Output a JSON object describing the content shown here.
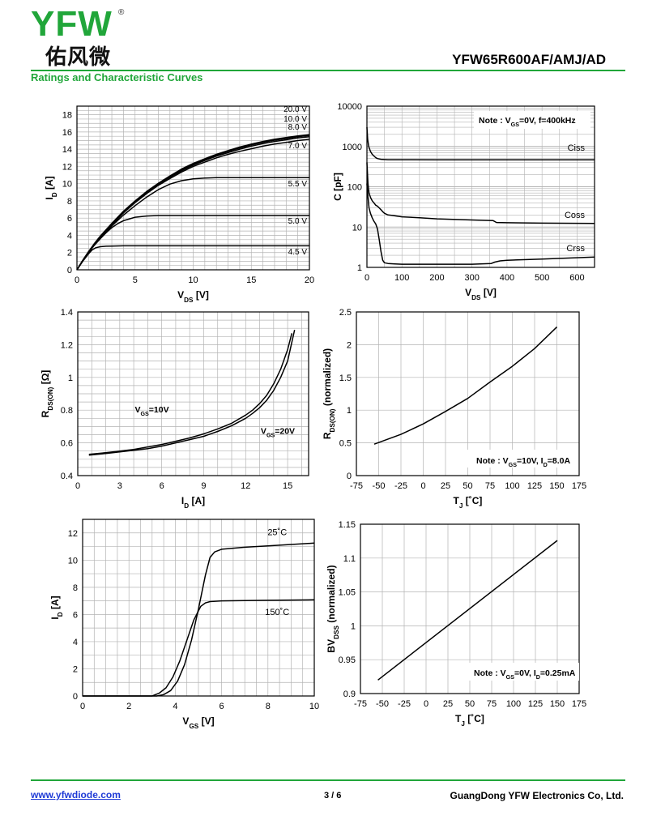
{
  "header": {
    "logo_text": "YFW",
    "logo_reg": "®",
    "logo_cn": "佑风微",
    "part_number": "YFW65R600AF/AMJ/AD",
    "section_title": "Ratings and Characteristic Curves"
  },
  "footer": {
    "website": "www.yfwdiode.com",
    "page": "3 / 6",
    "company": "GuangDong YFW Electronics Co, Ltd."
  },
  "colors": {
    "brand_green": "#21a63a",
    "link_blue": "#1f3bd6",
    "grid": "#b3b3b3",
    "curve": "#000000"
  },
  "chart_data": [
    {
      "id": "output",
      "type": "line",
      "xlabel": {
        "main": "V",
        "sub": "DS",
        "unit": " [V]"
      },
      "ylabel": {
        "main": "I",
        "sub": "D",
        "unit": " [A]"
      },
      "xlim": [
        0,
        20
      ],
      "ylim": [
        0,
        19
      ],
      "xticks": [
        "0",
        "5",
        "10",
        "15",
        "20"
      ],
      "yticks": [
        "0",
        "2",
        "4",
        "6",
        "8",
        "10",
        "12",
        "14",
        "16",
        "18"
      ],
      "grid": true,
      "series": [
        {
          "name": "20.0 V",
          "x": [
            0,
            0.5,
            1,
            1.5,
            2,
            3,
            4,
            5,
            6,
            7,
            8,
            9,
            10,
            11,
            12,
            13,
            14,
            15,
            16,
            17,
            18,
            19,
            20
          ],
          "y": [
            0,
            1.1,
            2.1,
            3.05,
            3.9,
            5.4,
            6.8,
            8.0,
            9.1,
            10.05,
            10.9,
            11.7,
            12.35,
            12.9,
            13.4,
            13.85,
            14.25,
            14.6,
            14.9,
            15.15,
            15.35,
            15.55,
            15.7
          ]
        },
        {
          "name": "10.0 V",
          "x": [
            0,
            0.5,
            1,
            1.5,
            2,
            3,
            4,
            5,
            6,
            7,
            8,
            9,
            10,
            11,
            12,
            13,
            14,
            15,
            16,
            17,
            18,
            19,
            20
          ],
          "y": [
            0,
            1.1,
            2.1,
            3.0,
            3.85,
            5.35,
            6.75,
            7.95,
            9.05,
            10.0,
            10.85,
            11.6,
            12.25,
            12.8,
            13.3,
            13.75,
            14.15,
            14.5,
            14.8,
            15.05,
            15.25,
            15.45,
            15.6
          ]
        },
        {
          "name": "8.0 V",
          "x": [
            0,
            0.5,
            1,
            1.5,
            2,
            3,
            4,
            5,
            6,
            7,
            8,
            9,
            10,
            11,
            12,
            13,
            14,
            15,
            16,
            17,
            18,
            19,
            20
          ],
          "y": [
            0,
            1.1,
            2.05,
            2.95,
            3.8,
            5.3,
            6.7,
            7.9,
            9.0,
            9.95,
            10.75,
            11.5,
            12.15,
            12.7,
            13.2,
            13.6,
            14.0,
            14.35,
            14.65,
            14.9,
            15.1,
            15.3,
            15.45
          ]
        },
        {
          "name": "7.0 V",
          "x": [
            0,
            0.5,
            1,
            1.5,
            2,
            3,
            4,
            5,
            6,
            7,
            8,
            9,
            10,
            11,
            12,
            13,
            14,
            15,
            16,
            17,
            18,
            19,
            20
          ],
          "y": [
            0,
            1.05,
            2.0,
            2.9,
            3.75,
            5.2,
            6.6,
            7.8,
            8.85,
            9.8,
            10.6,
            11.35,
            12.0,
            12.5,
            13.0,
            13.4,
            13.75,
            14.05,
            14.35,
            14.6,
            14.8,
            15.0,
            15.15
          ]
        },
        {
          "name": "5.5 V",
          "x": [
            0,
            0.5,
            1,
            1.5,
            2,
            3,
            4,
            5,
            6,
            7,
            8,
            9,
            10,
            11,
            12,
            13,
            14,
            15,
            16,
            17,
            18,
            19,
            20
          ],
          "y": [
            0,
            1.05,
            2.0,
            2.9,
            3.7,
            5.1,
            6.35,
            7.45,
            8.45,
            9.3,
            9.95,
            10.35,
            10.55,
            10.65,
            10.7,
            10.7,
            10.7,
            10.7,
            10.7,
            10.7,
            10.7,
            10.7,
            10.7
          ]
        },
        {
          "name": "5.0 V",
          "x": [
            0,
            0.5,
            1,
            1.5,
            2,
            2.5,
            3,
            3.5,
            4,
            5,
            6,
            7,
            8,
            10,
            12,
            14,
            16,
            18,
            20
          ],
          "y": [
            0,
            1.05,
            2.0,
            2.85,
            3.6,
            4.3,
            4.9,
            5.35,
            5.7,
            6.1,
            6.25,
            6.3,
            6.3,
            6.3,
            6.3,
            6.3,
            6.3,
            6.3,
            6.3
          ]
        },
        {
          "name": "4.5 V",
          "x": [
            0,
            0.5,
            1,
            1.3,
            1.6,
            2,
            2.5,
            3,
            4,
            5,
            6,
            8,
            10,
            12,
            14,
            16,
            18,
            20
          ],
          "y": [
            0,
            1.0,
            1.85,
            2.3,
            2.55,
            2.68,
            2.74,
            2.76,
            2.78,
            2.78,
            2.78,
            2.78,
            2.78,
            2.78,
            2.78,
            2.78,
            2.78,
            2.78
          ]
        }
      ]
    },
    {
      "id": "capacitance",
      "type": "line",
      "yscale": "log",
      "xlabel": {
        "main": "V",
        "sub": "DS",
        "unit": " [V]"
      },
      "ylabel": {
        "main": "C [pF]",
        "sub": "",
        "unit": ""
      },
      "xlim": [
        0,
        650
      ],
      "ylim": [
        1,
        10000
      ],
      "xticks": [
        "0",
        "100",
        "200",
        "300",
        "400",
        "500",
        "600"
      ],
      "yticks": [
        "1",
        "10",
        "100",
        "1000",
        "10000"
      ],
      "note": {
        "pre": "Note : V",
        "sub": "GS",
        "post": "=0V, f=400kHz"
      },
      "grid": true,
      "series": [
        {
          "name": "Ciss",
          "x": [
            0,
            2,
            5,
            10,
            15,
            20,
            25,
            30,
            40,
            60,
            100,
            200,
            300,
            400,
            500,
            650
          ],
          "y": [
            3000,
            1500,
            1000,
            760,
            640,
            580,
            530,
            500,
            480,
            470,
            470,
            468,
            467,
            466,
            466,
            466
          ]
        },
        {
          "name": "Coss",
          "x": [
            0,
            3,
            6,
            10,
            15,
            20,
            25,
            30,
            35,
            40,
            45,
            50,
            60,
            70,
            80,
            100,
            150,
            200,
            300,
            360,
            370,
            400,
            500,
            650
          ],
          "y": [
            400,
            120,
            70,
            55,
            45,
            40,
            35,
            33,
            30,
            27,
            24,
            22,
            20,
            19.5,
            19,
            18,
            17,
            16,
            15,
            14.5,
            13,
            12.8,
            12.5,
            12.3
          ]
        },
        {
          "name": "Crss",
          "x": [
            0,
            3,
            6,
            10,
            15,
            20,
            25,
            30,
            35,
            40,
            45,
            50,
            60,
            80,
            100,
            150,
            200,
            300,
            355,
            365,
            380,
            400,
            500,
            650
          ],
          "y": [
            120,
            55,
            30,
            22,
            17,
            14,
            12,
            9,
            5,
            2.5,
            1.5,
            1.3,
            1.25,
            1.22,
            1.2,
            1.2,
            1.2,
            1.2,
            1.25,
            1.35,
            1.45,
            1.5,
            1.6,
            1.8
          ]
        }
      ]
    },
    {
      "id": "rdson",
      "type": "line",
      "xlabel": {
        "main": "I",
        "sub": "D",
        "unit": " [A]"
      },
      "ylabel": {
        "main": "R",
        "sub": "DS(ON)",
        "unit": " [Ω]"
      },
      "xlim": [
        0,
        16.5
      ],
      "ylim": [
        0.4,
        1.4
      ],
      "xticks": [
        "0",
        "3",
        "6",
        "9",
        "12",
        "15"
      ],
      "yticks": [
        "0.4",
        "0.6",
        "0.8",
        "1",
        "1.2",
        "1.4"
      ],
      "grid": true,
      "curve_labels": [
        {
          "main": "V",
          "sub": "GS",
          "post": "=10V"
        },
        {
          "main": "V",
          "sub": "GS",
          "post": "=20V"
        }
      ],
      "series": [
        {
          "name": "VGS=10V",
          "x": [
            0.8,
            2,
            3,
            4,
            5,
            6,
            7,
            8,
            9,
            10,
            11,
            12,
            12.5,
            13,
            13.5,
            14,
            14.5,
            15,
            15.3
          ],
          "y": [
            0.53,
            0.54,
            0.55,
            0.56,
            0.575,
            0.59,
            0.61,
            0.63,
            0.655,
            0.685,
            0.72,
            0.77,
            0.8,
            0.84,
            0.89,
            0.96,
            1.05,
            1.17,
            1.27
          ]
        },
        {
          "name": "VGS=20V",
          "x": [
            0.8,
            2,
            3,
            4,
            5,
            6,
            7,
            8,
            9,
            10,
            11,
            12,
            12.5,
            13,
            13.5,
            14,
            14.5,
            15,
            15.5
          ],
          "y": [
            0.525,
            0.535,
            0.545,
            0.555,
            0.565,
            0.58,
            0.6,
            0.62,
            0.64,
            0.67,
            0.705,
            0.75,
            0.78,
            0.815,
            0.86,
            0.92,
            1.0,
            1.1,
            1.29
          ]
        }
      ]
    },
    {
      "id": "rdson_norm",
      "type": "line",
      "xlabel": {
        "main": "T",
        "sub": "J",
        "unit": " [˚C]"
      },
      "ylabel": {
        "main": "R",
        "sub": "DS(ON)",
        "unit": " (normalized)"
      },
      "xlim": [
        -75,
        175
      ],
      "ylim": [
        0,
        2.5
      ],
      "xticks": [
        "-75",
        "-50",
        "-25",
        "0",
        "25",
        "50",
        "75",
        "100",
        "125",
        "150",
        "175"
      ],
      "yticks": [
        "0",
        "0.5",
        "1",
        "1.5",
        "2",
        "2.5"
      ],
      "note": {
        "pre": "Note : V",
        "sub": "GS",
        "mid": "=10V, I",
        "sub2": "D",
        "post": "=8.0A"
      },
      "grid": true,
      "series": [
        {
          "name": "RDS(ON)",
          "x": [
            -55,
            -25,
            0,
            25,
            50,
            75,
            100,
            125,
            150
          ],
          "y": [
            0.48,
            0.63,
            0.79,
            0.98,
            1.18,
            1.43,
            1.67,
            1.94,
            2.27
          ]
        }
      ]
    },
    {
      "id": "transfer",
      "type": "line",
      "xlabel": {
        "main": "V",
        "sub": "GS",
        "unit": " [V]"
      },
      "ylabel": {
        "main": "I",
        "sub": "D",
        "unit": " [A]"
      },
      "xlim": [
        0,
        10
      ],
      "ylim": [
        0,
        13
      ],
      "xticks": [
        "0",
        "2",
        "4",
        "6",
        "8",
        "10"
      ],
      "yticks": [
        "0",
        "2",
        "4",
        "6",
        "8",
        "10",
        "12"
      ],
      "grid": true,
      "series": [
        {
          "name": "25˚C",
          "x": [
            0,
            3.2,
            3.5,
            3.8,
            4.1,
            4.4,
            4.7,
            5.0,
            5.3,
            5.5,
            5.7,
            6.0,
            7.0,
            8.0,
            9.0,
            10.0
          ],
          "y": [
            0,
            0,
            0.1,
            0.4,
            1.1,
            2.3,
            4.1,
            6.4,
            8.9,
            10.2,
            10.6,
            10.8,
            10.95,
            11.05,
            11.15,
            11.25
          ]
        },
        {
          "name": "150˚C",
          "x": [
            0,
            3.0,
            3.3,
            3.6,
            3.9,
            4.2,
            4.5,
            4.8,
            5.1,
            5.3,
            5.5,
            6.0,
            7.0,
            8.0,
            9.0,
            10.0
          ],
          "y": [
            0,
            0,
            0.2,
            0.6,
            1.4,
            2.6,
            4.1,
            5.6,
            6.6,
            6.85,
            6.95,
            7.0,
            7.02,
            7.04,
            7.06,
            7.08
          ]
        }
      ]
    },
    {
      "id": "bvdss_norm",
      "type": "line",
      "xlabel": {
        "main": "T",
        "sub": "J",
        "unit": " [˚C]"
      },
      "ylabel": {
        "main": "BV",
        "sub": "DSS",
        "unit": " (normalized)"
      },
      "xlim": [
        -75,
        175
      ],
      "ylim": [
        0.9,
        1.15
      ],
      "xticks": [
        "-75",
        "-50",
        "-25",
        "0",
        "25",
        "50",
        "75",
        "100",
        "125",
        "150",
        "175"
      ],
      "yticks": [
        "0.9",
        "0.95",
        "1",
        "1.05",
        "1.1",
        "1.15"
      ],
      "note": {
        "pre": "Note : V",
        "sub": "GS",
        "mid": "=0V, I",
        "sub2": "D",
        "post": "=0.25mA"
      },
      "grid": true,
      "series": [
        {
          "name": "BVDSS",
          "x": [
            -55,
            150
          ],
          "y": [
            0.92,
            1.126
          ]
        }
      ]
    }
  ]
}
